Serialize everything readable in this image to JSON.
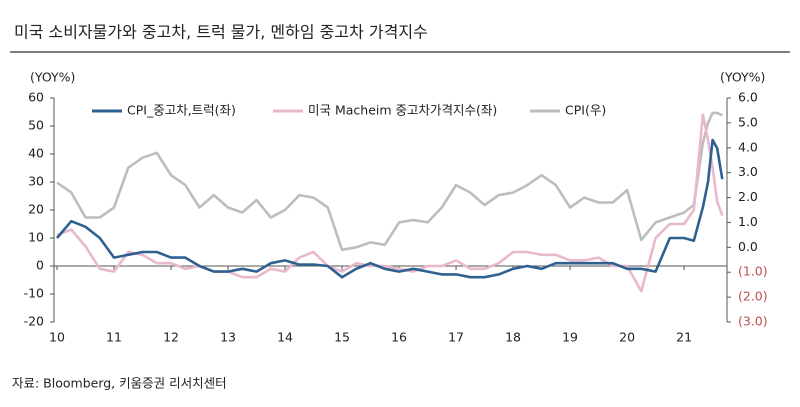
{
  "chart_data": {
    "type": "line",
    "title": "미국 소비자물가와 중고차, 트럭 물가, 멘하임 중고차 가격지수",
    "y_label": "(YOY%)",
    "y2_label": "(YOY%)",
    "source": "자료: Bloomberg, 키움증권 리서치센터",
    "legend": "top",
    "y2_negative_color": "#c0504d",
    "x": [
      2010,
      2010.25,
      2010.5,
      2010.75,
      2011,
      2011.25,
      2011.5,
      2011.75,
      2012,
      2012.25,
      2012.5,
      2012.75,
      2013,
      2013.25,
      2013.5,
      2013.75,
      2014,
      2014.25,
      2014.5,
      2014.75,
      2015,
      2015.25,
      2015.5,
      2015.75,
      2016,
      2016.25,
      2016.5,
      2016.75,
      2017,
      2017.25,
      2017.5,
      2017.75,
      2018,
      2018.25,
      2018.5,
      2018.75,
      2019,
      2019.25,
      2019.5,
      2019.75,
      2020,
      2020.25,
      2020.5,
      2020.75,
      2021,
      2021.17,
      2021.33,
      2021.42,
      2021.5,
      2021.58,
      2021.67
    ],
    "xlim": [
      2010,
      2021.7
    ],
    "xticks": [
      {
        "value": 2010,
        "label": "10"
      },
      {
        "value": 2011,
        "label": "11"
      },
      {
        "value": 2012,
        "label": "12"
      },
      {
        "value": 2013,
        "label": "13"
      },
      {
        "value": 2014,
        "label": "14"
      },
      {
        "value": 2015,
        "label": "15"
      },
      {
        "value": 2016,
        "label": "16"
      },
      {
        "value": 2017,
        "label": "17"
      },
      {
        "value": 2018,
        "label": "18"
      },
      {
        "value": 2019,
        "label": "19"
      },
      {
        "value": 2020,
        "label": "20"
      },
      {
        "value": 2021,
        "label": "21"
      }
    ],
    "ylim": [
      -20,
      60
    ],
    "yticks": [
      -20,
      -10,
      0,
      10,
      20,
      30,
      40,
      50,
      60
    ],
    "y2lim": [
      -3,
      6
    ],
    "y2ticks": [
      {
        "value": -3,
        "label": "(3.0)"
      },
      {
        "value": -2,
        "label": "(2.0)"
      },
      {
        "value": -1,
        "label": "(1.0)"
      },
      {
        "value": 0,
        "label": "0.0"
      },
      {
        "value": 1,
        "label": "1.0"
      },
      {
        "value": 2,
        "label": "2.0"
      },
      {
        "value": 3,
        "label": "3.0"
      },
      {
        "value": 4,
        "label": "4.0"
      },
      {
        "value": 5,
        "label": "5.0"
      },
      {
        "value": 6,
        "label": "6.0"
      }
    ],
    "series": [
      {
        "name": "CPI_중고차,트럭(좌)",
        "color": "#2f6190",
        "values": [
          10,
          16,
          14,
          10,
          3,
          4,
          5,
          5,
          3,
          3,
          0,
          -2,
          -2,
          -1,
          -2,
          1,
          2,
          0.5,
          0.5,
          0,
          -4,
          -1,
          1,
          -1,
          -2,
          -1,
          -2,
          -3,
          -3,
          -4,
          -4,
          -3,
          -1,
          0,
          -1,
          1,
          1,
          1,
          1,
          1,
          -1,
          -1,
          -2,
          10,
          10,
          9,
          21,
          30,
          45,
          42,
          31
        ]
      },
      {
        "name": "미국 Macheim 중고차가격지수(좌)",
        "color": "#e9b8cb",
        "values": [
          11,
          13,
          7,
          -1,
          -2,
          5,
          4,
          1,
          1,
          -1,
          0,
          -2,
          -2,
          -4,
          -4,
          -1,
          -2,
          3,
          5,
          0,
          -2,
          1,
          0,
          0,
          -1,
          -2,
          0,
          0,
          2,
          -1,
          -1,
          1,
          5,
          5,
          4,
          4,
          2,
          2,
          3,
          0,
          0,
          -9,
          10,
          15,
          15,
          20,
          54,
          45,
          35,
          23,
          18
        ]
      },
      {
        "name": "CPI(우)",
        "color": "#bdbdbd",
        "axis": "y2",
        "values": [
          2.6,
          2.2,
          1.2,
          1.2,
          1.6,
          3.2,
          3.6,
          3.8,
          2.9,
          2.5,
          1.6,
          2.1,
          1.6,
          1.4,
          1.9,
          1.2,
          1.5,
          2.1,
          2.0,
          1.6,
          -0.1,
          0.0,
          0.2,
          0.1,
          1.0,
          1.1,
          1.0,
          1.6,
          2.5,
          2.2,
          1.7,
          2.1,
          2.2,
          2.5,
          2.9,
          2.5,
          1.6,
          2.0,
          1.8,
          1.8,
          2.3,
          0.3,
          1.0,
          1.2,
          1.4,
          1.7,
          4.2,
          5.0,
          5.4,
          5.4,
          5.3
        ]
      }
    ]
  }
}
